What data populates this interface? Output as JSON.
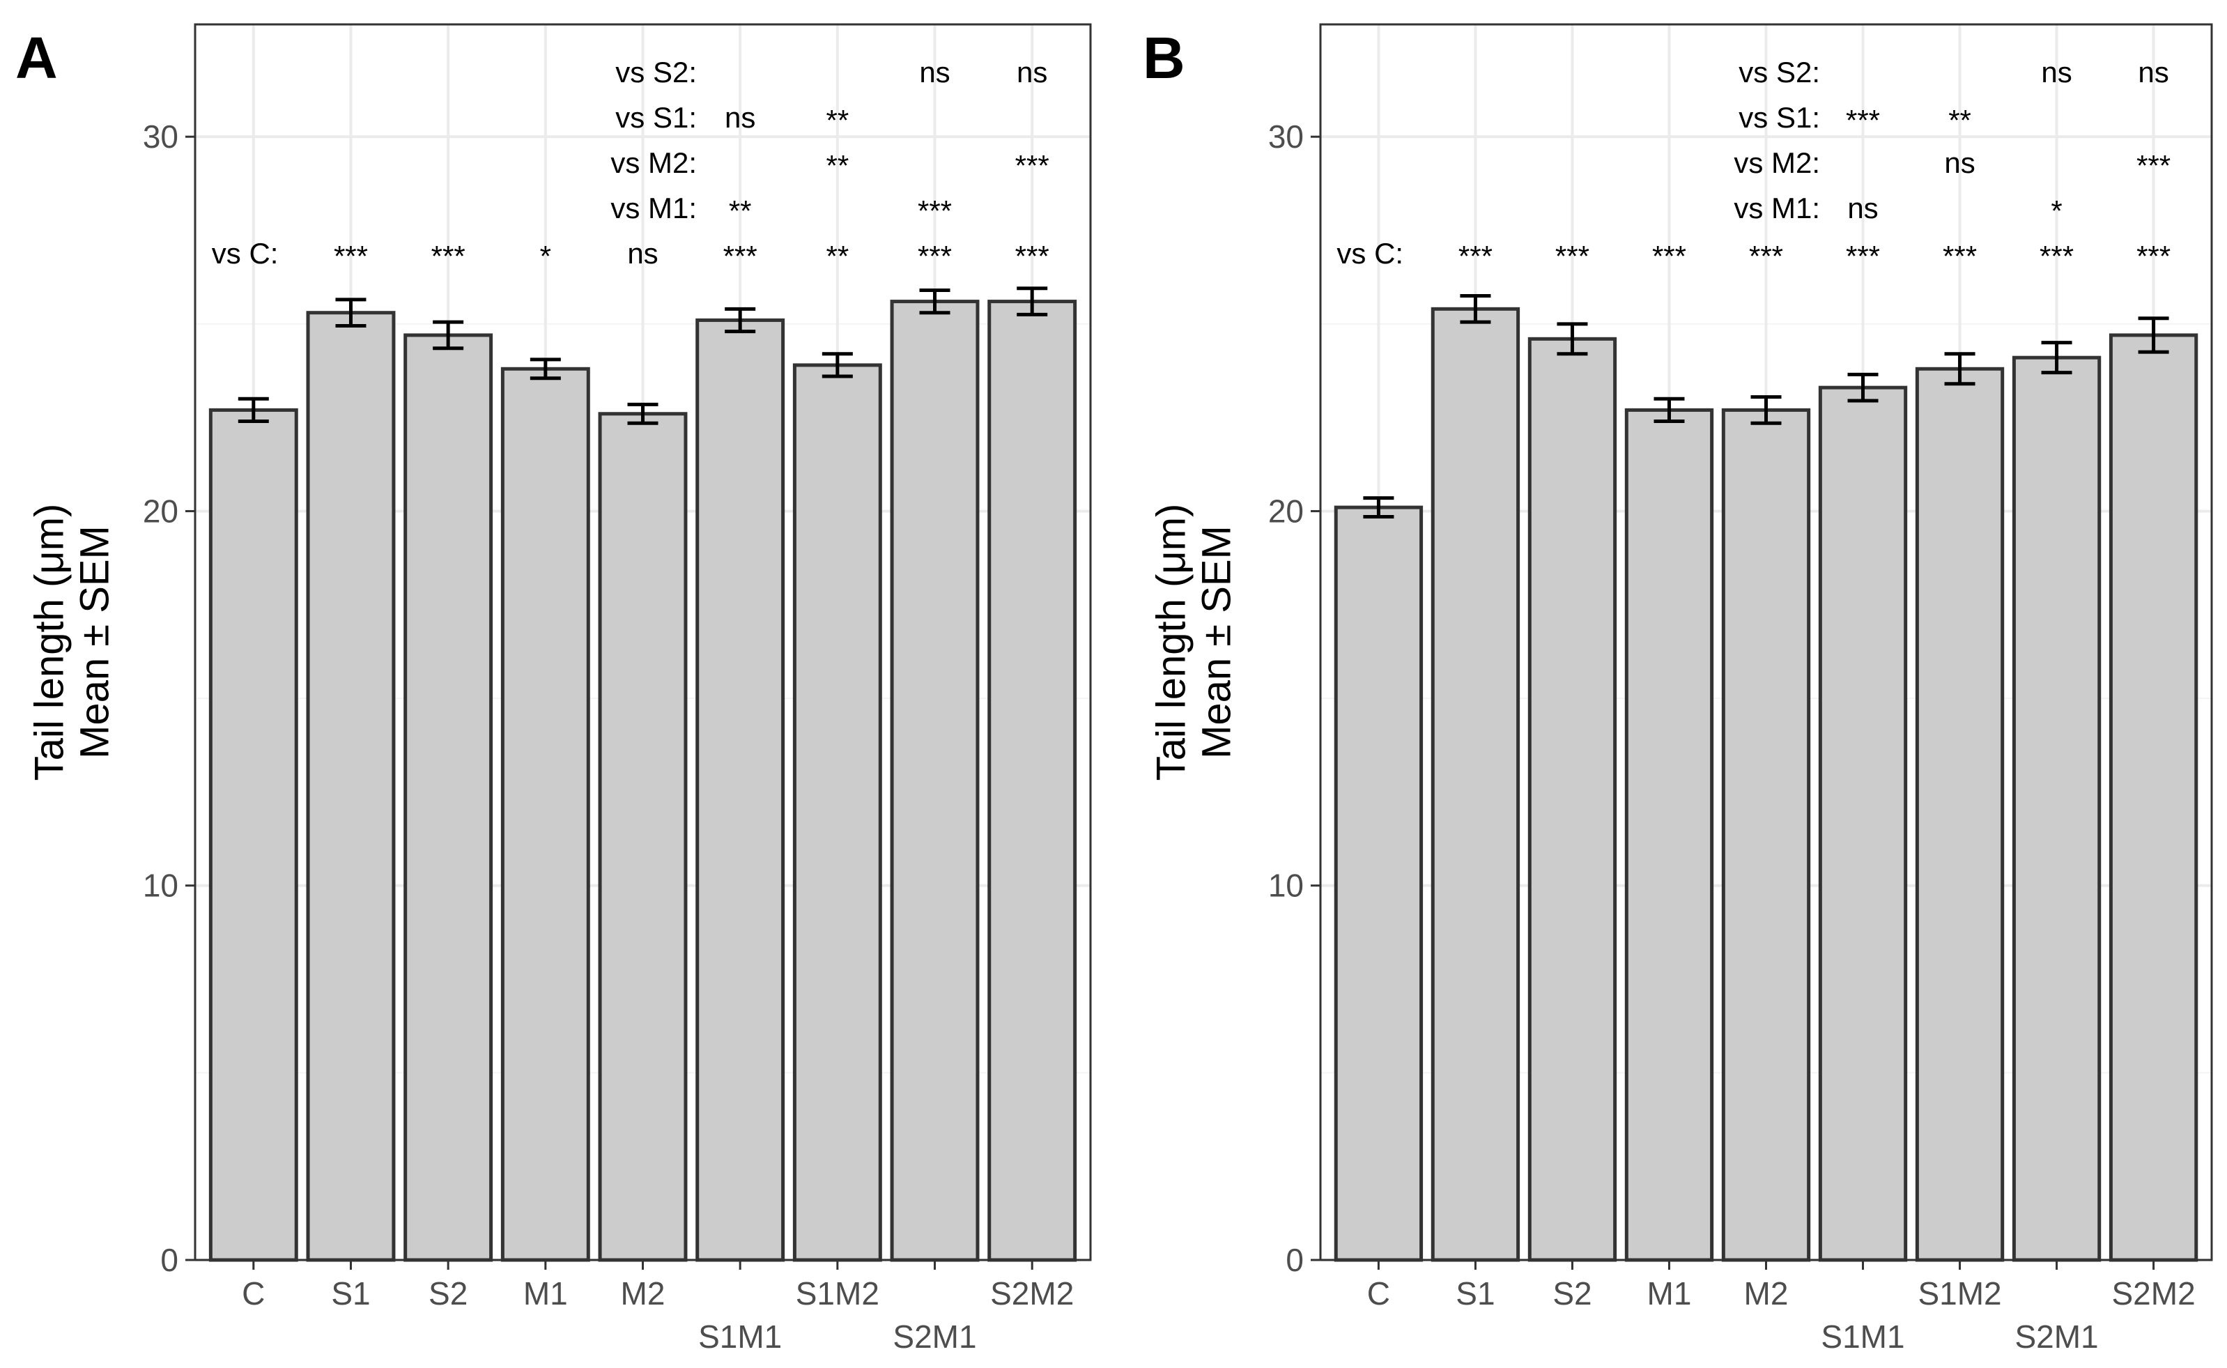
{
  "chart_data": [
    {
      "type": "bar",
      "panel": "A",
      "categories": [
        "C",
        "S1",
        "S2",
        "M1",
        "M2",
        "S1M1",
        "S1M2",
        "S2M1",
        "S2M2"
      ],
      "values": [
        22.7,
        25.3,
        24.7,
        23.8,
        22.6,
        25.1,
        23.9,
        25.6,
        25.6
      ],
      "sem": [
        0.3,
        0.35,
        0.35,
        0.25,
        0.25,
        0.3,
        0.3,
        0.3,
        0.35
      ],
      "ylabel_line1": "Tail length (μm)",
      "ylabel_line2": "Mean ± SEM",
      "ylim": [
        0,
        33
      ],
      "yticks": [
        "0",
        "10",
        "20",
        "30"
      ],
      "grid": true,
      "comparisons": [
        {
          "label": "vs C:",
          "marks": [
            "",
            "***",
            "***",
            "*",
            "ns",
            "***",
            "**",
            "***",
            "***"
          ]
        },
        {
          "label": "vs M1:",
          "marks": [
            "",
            "",
            "",
            "",
            "",
            "**",
            "",
            "***",
            ""
          ]
        },
        {
          "label": "vs M2:",
          "marks": [
            "",
            "",
            "",
            "",
            "",
            "",
            "**",
            "",
            "***"
          ]
        },
        {
          "label": "vs S1:",
          "marks": [
            "",
            "",
            "",
            "",
            "",
            "ns",
            "**",
            "",
            ""
          ]
        },
        {
          "label": "vs S2:",
          "marks": [
            "",
            "",
            "",
            "",
            "",
            "",
            "",
            "ns",
            "ns"
          ]
        }
      ]
    },
    {
      "type": "bar",
      "panel": "B",
      "categories": [
        "C",
        "S1",
        "S2",
        "M1",
        "M2",
        "S1M1",
        "S1M2",
        "S2M1",
        "S2M2"
      ],
      "values": [
        20.1,
        25.4,
        24.6,
        22.7,
        22.7,
        23.3,
        23.8,
        24.1,
        24.7
      ],
      "sem": [
        0.25,
        0.35,
        0.4,
        0.3,
        0.35,
        0.35,
        0.4,
        0.4,
        0.45
      ],
      "ylabel_line1": "Tail length (μm)",
      "ylabel_line2": "Mean ± SEM",
      "ylim": [
        0,
        33
      ],
      "yticks": [
        "0",
        "10",
        "20",
        "30"
      ],
      "grid": true,
      "comparisons": [
        {
          "label": "vs C:",
          "marks": [
            "",
            "***",
            "***",
            "***",
            "***",
            "***",
            "***",
            "***",
            "***"
          ]
        },
        {
          "label": "vs M1:",
          "marks": [
            "",
            "",
            "",
            "",
            "",
            "ns",
            "",
            "*",
            ""
          ]
        },
        {
          "label": "vs M2:",
          "marks": [
            "",
            "",
            "",
            "",
            "",
            "",
            "ns",
            "",
            "***"
          ]
        },
        {
          "label": "vs S1:",
          "marks": [
            "",
            "",
            "",
            "",
            "",
            "***",
            "**",
            "",
            ""
          ]
        },
        {
          "label": "vs S2:",
          "marks": [
            "",
            "",
            "",
            "",
            "",
            "",
            "",
            "ns",
            "ns"
          ]
        }
      ]
    }
  ],
  "colors": {
    "bar_fill": "#cccccc",
    "bar_stroke": "#333333",
    "grid_major": "#ebebeb",
    "grid_minor": "#f4f4f4",
    "panel_border": "#333333",
    "tick_text": "#4d4d4d"
  }
}
